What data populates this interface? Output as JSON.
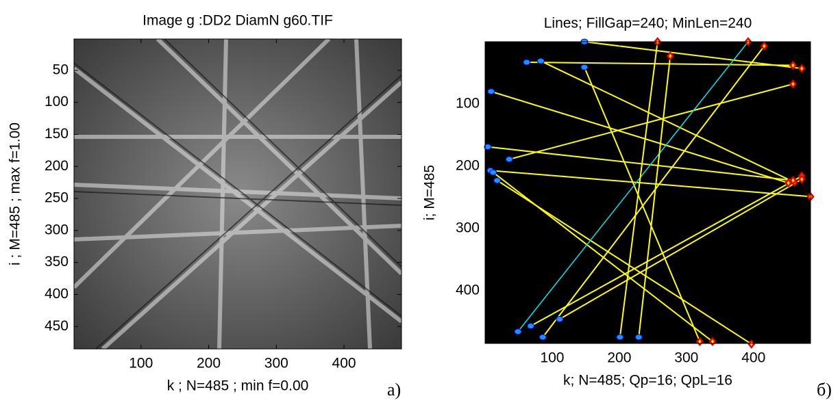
{
  "chart_data": [
    {
      "type": "image",
      "title": "Image  g   :DD2 DiamN g60.TIF",
      "xlabel": "k ; N=485 ; min f=0.00",
      "ylabel": "i ; M=485 ; max f=1.00",
      "xlim": [
        1,
        485
      ],
      "ylim": [
        1,
        485
      ],
      "xticks": [
        100,
        200,
        300,
        400
      ],
      "yticks": [
        50,
        100,
        150,
        200,
        250,
        300,
        350,
        400,
        450
      ],
      "panel_label": "а)"
    },
    {
      "type": "segments",
      "title": "Lines; FillGap=240; MinLen=240",
      "xlabel": "k; N=485; Qp=16; QpL=16",
      "ylabel": "i; M=485",
      "xlim": [
        0,
        485
      ],
      "ylim": [
        0,
        485
      ],
      "xticks": [
        100,
        200,
        300,
        400
      ],
      "yticks": [
        100,
        200,
        300,
        400
      ],
      "background": "#000000",
      "start_color": "#1e90ff",
      "end_color": "#ff0000",
      "lines": [
        {
          "x": [
            148,
            472
          ],
          "y": [
            0,
            43
          ],
          "color": "#ffff00"
        },
        {
          "x": [
            62,
            459
          ],
          "y": [
            33,
            38
          ],
          "color": "#ffff00"
        },
        {
          "x": [
            83,
            461
          ],
          "y": [
            31,
            226
          ],
          "color": "#ffff00"
        },
        {
          "x": [
            148,
            320
          ],
          "y": [
            41,
            482
          ],
          "color": "#ffff00"
        },
        {
          "x": [
            9,
            452
          ],
          "y": [
            80,
            227
          ],
          "color": "#ffff00"
        },
        {
          "x": [
            4,
            459
          ],
          "y": [
            169,
            223
          ],
          "color": "#ffff00"
        },
        {
          "x": [
            8,
            485
          ],
          "y": [
            207,
            249
          ],
          "color": "#ffff00"
        },
        {
          "x": [
            12,
            339
          ],
          "y": [
            210,
            482
          ],
          "color": "#ffff00"
        },
        {
          "x": [
            18,
            397
          ],
          "y": [
            223,
            486
          ],
          "color": "#ffff00"
        },
        {
          "x": [
            36,
            459
          ],
          "y": [
            189,
            68
          ],
          "color": "#ffff00"
        },
        {
          "x": [
            49,
            392
          ],
          "y": [
            466,
            0
          ],
          "color": "#00e5ee"
        },
        {
          "x": [
            68,
            472
          ],
          "y": [
            457,
            216
          ],
          "color": "#ffff00"
        },
        {
          "x": [
            86,
            416
          ],
          "y": [
            475,
            7
          ],
          "color": "#ffff00"
        },
        {
          "x": [
            201,
            257
          ],
          "y": [
            475,
            0
          ],
          "color": "#ffff00"
        },
        {
          "x": [
            229,
            276
          ],
          "y": [
            475,
            23
          ],
          "color": "#ffff00"
        },
        {
          "x": [
            111,
            472
          ],
          "y": [
            446,
            221
          ],
          "color": "#ffff00"
        }
      ],
      "panel_label": "б)"
    }
  ]
}
